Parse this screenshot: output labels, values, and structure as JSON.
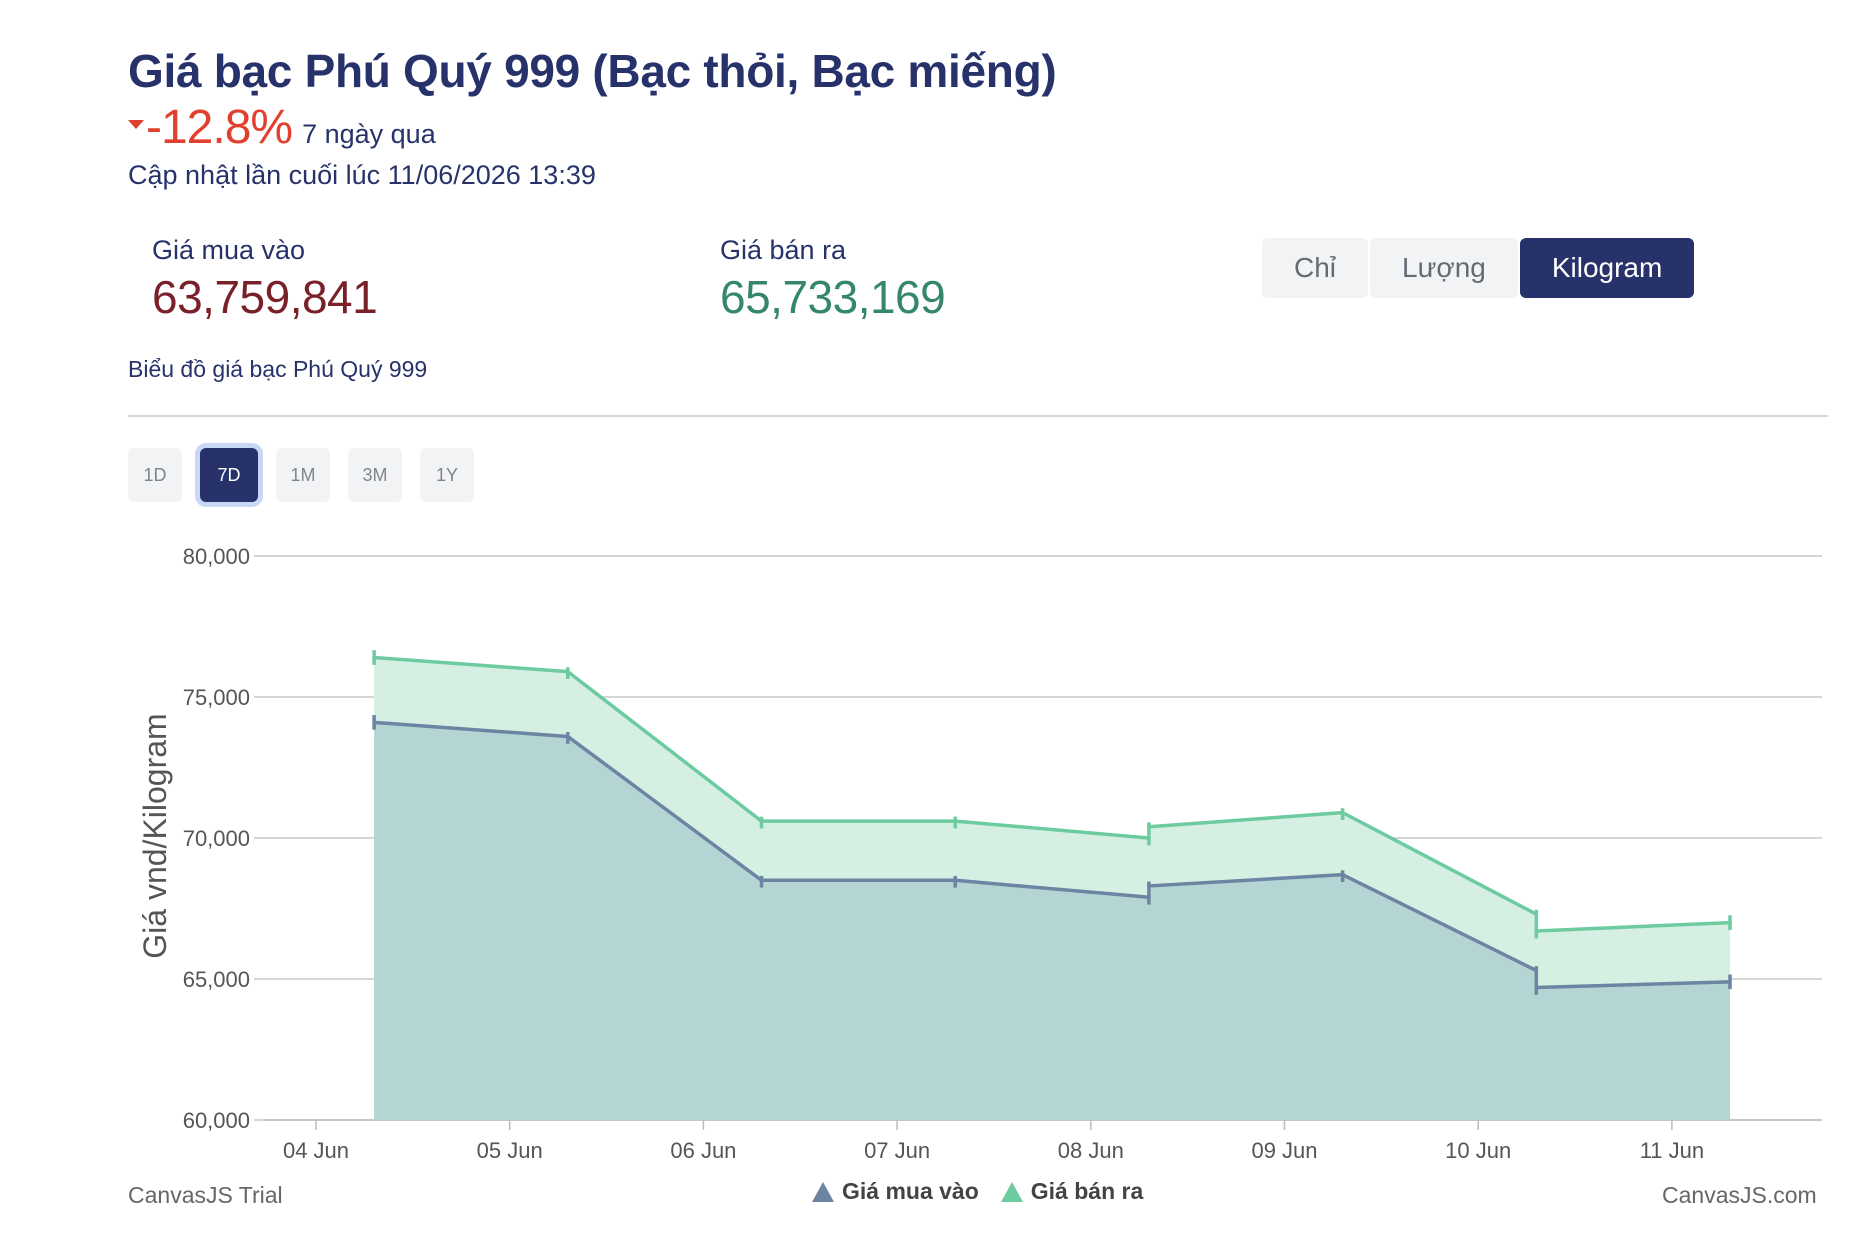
{
  "header": {
    "title": "Giá bạc Phú Quý 999 (Bạc thỏi, Bạc miếng)",
    "change_pct": "-12.8%",
    "change_period": "7 ngày qua",
    "updated": "Cập nhật lần cuối lúc 11/06/2026 13:39"
  },
  "prices": {
    "buy_label": "Giá mua vào",
    "buy_value": "63,759,841",
    "sell_label": "Giá bán ra",
    "sell_value": "65,733,169"
  },
  "units": {
    "options": [
      "Chỉ",
      "Lượng",
      "Kilogram"
    ],
    "selected": "Kilogram"
  },
  "chart_section": {
    "subtitle": "Biểu đồ giá bạc Phú Quý 999",
    "ranges": [
      "1D",
      "7D",
      "1M",
      "3M",
      "1Y"
    ],
    "selected_range": "7D"
  },
  "credits": {
    "left": "CanvasJS Trial",
    "right": "CanvasJS.com"
  },
  "colors": {
    "buy_line": "#6b85a3",
    "buy_fill": "#b5d4d4",
    "sell_line": "#6dcba0",
    "sell_fill": "#d5efe3",
    "accent": "#27326b",
    "negative": "#e2402e"
  },
  "chart_data": {
    "type": "area",
    "ylabel": "Giá vnd/Kilogram",
    "ylim": [
      60000,
      80000
    ],
    "yticks": [
      60000,
      65000,
      70000,
      75000,
      80000
    ],
    "ytick_labels": [
      "60,000",
      "65,000",
      "70,000",
      "75,000",
      "80,000"
    ],
    "xticks": [
      "04 Jun",
      "05 Jun",
      "06 Jun",
      "07 Jun",
      "08 Jun",
      "09 Jun",
      "10 Jun",
      "11 Jun"
    ],
    "x": [
      "04 Jun 07:00",
      "05 Jun 07:00",
      "06 Jun 07:00",
      "07 Jun 07:00",
      "08 Jun 07:00",
      "09 Jun 07:00",
      "10 Jun 07:00",
      "11 Jun 07:00"
    ],
    "grid": true,
    "legend": "bottom-center",
    "series": [
      {
        "name": "Giá mua vào",
        "values": [
          74100,
          73600,
          68500,
          68500,
          68300,
          68700,
          65300,
          64900
        ],
        "segments": [
          [
            74100,
            73600
          ],
          [
            73600,
            68500
          ],
          [
            68500,
            68500
          ],
          [
            68500,
            67900
          ],
          [
            68300,
            68700
          ],
          [
            68700,
            65300
          ],
          [
            64700,
            64900
          ]
        ]
      },
      {
        "name": "Giá bán ra",
        "values": [
          76400,
          75900,
          70600,
          70600,
          70400,
          70900,
          67300,
          67000
        ],
        "segments": [
          [
            76400,
            75900
          ],
          [
            75900,
            70600
          ],
          [
            70600,
            70600
          ],
          [
            70600,
            70000
          ],
          [
            70400,
            70900
          ],
          [
            70900,
            67300
          ],
          [
            66700,
            67000
          ]
        ]
      }
    ]
  }
}
